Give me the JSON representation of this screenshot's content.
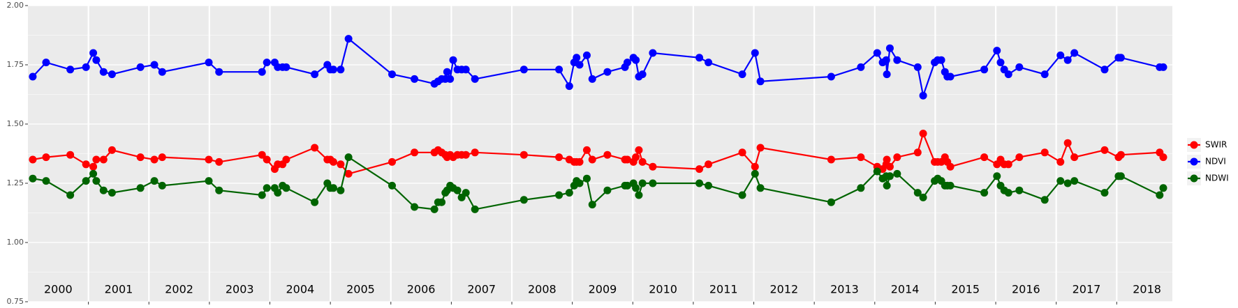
{
  "chart_data": {
    "type": "line",
    "x": [
      2000.08,
      2000.3,
      2000.7,
      2000.96,
      2001.08,
      2001.13,
      2001.25,
      2001.39,
      2001.86,
      2002.09,
      2002.22,
      2002.99,
      2003.16,
      2003.87,
      2003.95,
      2004.08,
      2004.13,
      2004.21,
      2004.27,
      2004.74,
      2004.95,
      2005.0,
      2005.05,
      2005.17,
      2005.3,
      2006.02,
      2006.39,
      2006.72,
      2006.78,
      2006.84,
      2006.9,
      2006.93,
      2006.98,
      2007.03,
      2007.1,
      2007.17,
      2007.24,
      2007.39,
      2008.2,
      2008.78,
      2008.95,
      2009.03,
      2009.07,
      2009.12,
      2009.24,
      2009.33,
      2009.58,
      2009.87,
      2009.91,
      2010.01,
      2010.05,
      2010.1,
      2010.16,
      2010.33,
      2011.1,
      2011.25,
      2011.81,
      2012.02,
      2012.11,
      2013.28,
      2013.77,
      2014.04,
      2014.13,
      2014.19,
      2014.2,
      2014.25,
      2014.37,
      2014.71,
      2014.8,
      2014.99,
      2015.04,
      2015.1,
      2015.16,
      2015.2,
      2015.25,
      2015.81,
      2016.02,
      2016.08,
      2016.14,
      2016.21,
      2016.39,
      2016.81,
      2017.07,
      2017.19,
      2017.3,
      2017.8,
      2018.03,
      2018.07,
      2018.71,
      2018.77
    ],
    "series": [
      {
        "name": "SWIR",
        "color": "#ff0000",
        "values": [
          1.35,
          1.36,
          1.37,
          1.33,
          1.32,
          1.35,
          1.35,
          1.39,
          1.36,
          1.35,
          1.36,
          1.35,
          1.34,
          1.37,
          1.35,
          1.31,
          1.33,
          1.33,
          1.35,
          1.4,
          1.35,
          1.35,
          1.34,
          1.33,
          1.29,
          1.34,
          1.38,
          1.38,
          1.39,
          1.38,
          1.37,
          1.36,
          1.37,
          1.36,
          1.37,
          1.37,
          1.37,
          1.38,
          1.37,
          1.36,
          1.35,
          1.34,
          1.34,
          1.34,
          1.39,
          1.35,
          1.37,
          1.35,
          1.35,
          1.34,
          1.36,
          1.39,
          1.34,
          1.32,
          1.31,
          1.33,
          1.38,
          1.32,
          1.4,
          1.35,
          1.36,
          1.32,
          1.31,
          1.33,
          1.35,
          1.32,
          1.36,
          1.38,
          1.46,
          1.34,
          1.34,
          1.34,
          1.36,
          1.34,
          1.32,
          1.36,
          1.33,
          1.35,
          1.33,
          1.33,
          1.36,
          1.38,
          1.34,
          1.42,
          1.36,
          1.39,
          1.36,
          1.37,
          1.38,
          1.36
        ]
      },
      {
        "name": "NDVI",
        "color": "#0000ff",
        "values": [
          1.7,
          1.76,
          1.73,
          1.74,
          1.8,
          1.77,
          1.72,
          1.71,
          1.74,
          1.75,
          1.72,
          1.76,
          1.72,
          1.72,
          1.76,
          1.76,
          1.74,
          1.74,
          1.74,
          1.71,
          1.75,
          1.73,
          1.73,
          1.73,
          1.86,
          1.71,
          1.69,
          1.67,
          1.68,
          1.69,
          1.69,
          1.72,
          1.69,
          1.77,
          1.73,
          1.73,
          1.73,
          1.69,
          1.73,
          1.73,
          1.66,
          1.76,
          1.78,
          1.75,
          1.79,
          1.69,
          1.72,
          1.74,
          1.76,
          1.78,
          1.77,
          1.7,
          1.71,
          1.8,
          1.78,
          1.76,
          1.71,
          1.8,
          1.68,
          1.7,
          1.74,
          1.8,
          1.76,
          1.77,
          1.71,
          1.82,
          1.77,
          1.74,
          1.62,
          1.76,
          1.77,
          1.77,
          1.72,
          1.7,
          1.7,
          1.73,
          1.81,
          1.76,
          1.73,
          1.71,
          1.74,
          1.71,
          1.79,
          1.77,
          1.8,
          1.73,
          1.78,
          1.78,
          1.74,
          1.74
        ]
      },
      {
        "name": "NDWI",
        "color": "#006400",
        "values": [
          1.27,
          1.26,
          1.2,
          1.26,
          1.29,
          1.26,
          1.22,
          1.21,
          1.23,
          1.26,
          1.24,
          1.26,
          1.22,
          1.2,
          1.23,
          1.23,
          1.21,
          1.24,
          1.23,
          1.17,
          1.25,
          1.23,
          1.23,
          1.22,
          1.36,
          1.24,
          1.15,
          1.14,
          1.17,
          1.17,
          1.21,
          1.22,
          1.24,
          1.23,
          1.22,
          1.19,
          1.21,
          1.14,
          1.18,
          1.2,
          1.21,
          1.24,
          1.26,
          1.25,
          1.27,
          1.16,
          1.22,
          1.24,
          1.24,
          1.25,
          1.23,
          1.2,
          1.25,
          1.25,
          1.25,
          1.24,
          1.2,
          1.29,
          1.23,
          1.17,
          1.23,
          1.3,
          1.27,
          1.28,
          1.24,
          1.28,
          1.29,
          1.21,
          1.19,
          1.26,
          1.27,
          1.26,
          1.24,
          1.24,
          1.24,
          1.21,
          1.28,
          1.24,
          1.22,
          1.21,
          1.22,
          1.18,
          1.26,
          1.25,
          1.26,
          1.21,
          1.28,
          1.28,
          1.2,
          1.23
        ]
      }
    ],
    "xlim": [
      2000,
      2018.92
    ],
    "xticks": [
      2001,
      2002,
      2003,
      2004,
      2005,
      2006,
      2007,
      2008,
      2009,
      2010,
      2011,
      2012,
      2013,
      2014,
      2015,
      2016,
      2017,
      2018
    ],
    "year_labels": [
      2000,
      2001,
      2002,
      2003,
      2004,
      2005,
      2006,
      2007,
      2008,
      2009,
      2010,
      2011,
      2012,
      2013,
      2014,
      2015,
      2016,
      2017,
      2018
    ],
    "ylim": [
      0.75,
      2.0
    ],
    "yticks": [
      {
        "value": 0.75,
        "label": "0.75"
      },
      {
        "value": 1.0,
        "label": "1.00"
      },
      {
        "value": 1.25,
        "label": "1.25"
      },
      {
        "value": 1.5,
        "label": "1.50"
      },
      {
        "value": 1.75,
        "label": "1.75"
      },
      {
        "value": 2.0,
        "label": "2.00"
      }
    ],
    "grid": true,
    "legend": "right"
  }
}
